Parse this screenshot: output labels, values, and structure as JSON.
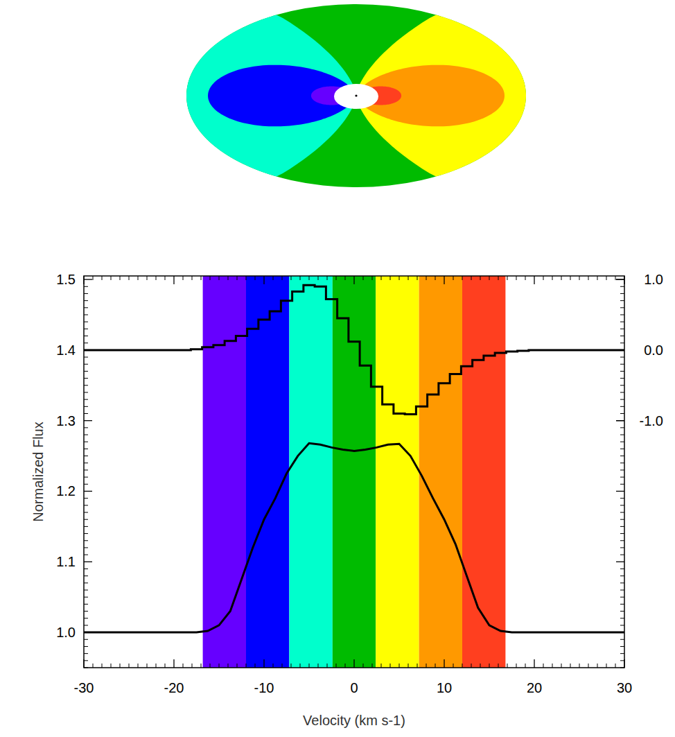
{
  "chart_data": {
    "type": "line",
    "x_label": "Velocity (km s-1)",
    "y_label": "Normalized Flux",
    "x": [
      -30,
      -28.75,
      -27.5,
      -26.25,
      -25,
      -23.75,
      -22.5,
      -21.25,
      -20,
      -18.75,
      -17.5,
      -16.25,
      -15,
      -13.75,
      -12.5,
      -11.25,
      -10,
      -8.75,
      -7.5,
      -6.25,
      -5,
      -3.75,
      -2.5,
      -1.25,
      0,
      1.25,
      2.5,
      3.75,
      5,
      6.25,
      7.5,
      8.75,
      10,
      11.25,
      12.5,
      13.75,
      15,
      16.25,
      17.5,
      18.75,
      20,
      21.25,
      22.5,
      23.75,
      25,
      26.25,
      27.5,
      28.75,
      30
    ],
    "series": [
      {
        "color": "#000000",
        "values": [
          1,
          1,
          1,
          1,
          1,
          1,
          1,
          1,
          1,
          1,
          1,
          1.002,
          1.01,
          1.03,
          1.075,
          1.12,
          1.16,
          1.19,
          1.225,
          1.25,
          1.268,
          1.266,
          1.262,
          1.259,
          1.257,
          1.259,
          1.262,
          1.266,
          1.267,
          1.25,
          1.222,
          1.19,
          1.16,
          1.125,
          1.08,
          1.035,
          1.01,
          1.002,
          1,
          1,
          1,
          1,
          1,
          1,
          1,
          1,
          1,
          1,
          1
        ]
      },
      {
        "color": "#000000",
        "axis": "y2",
        "line_style": "steps",
        "values": [
          0,
          0,
          0,
          0,
          0,
          0,
          0,
          0,
          0,
          0,
          0.01,
          0.04,
          0.07,
          0.13,
          0.2,
          0.3,
          0.43,
          0.55,
          0.7,
          0.83,
          0.92,
          0.9,
          0.72,
          0.45,
          0.12,
          -0.22,
          -0.52,
          -0.77,
          -0.9,
          -0.91,
          -0.8,
          -0.63,
          -0.47,
          -0.34,
          -0.23,
          -0.14,
          -0.08,
          -0.04,
          -0.02,
          -0.01,
          0,
          0,
          0,
          0,
          0,
          0,
          0,
          0,
          0
        ]
      }
    ],
    "bands": {
      "edges": [
        -16.8,
        -12,
        -7.2,
        -2.4,
        2.4,
        7.2,
        12,
        16.8
      ],
      "colors": [
        "#6600ff",
        "#0000ff",
        "#00ffcc",
        "#00bb00",
        "#ffff00",
        "#ff9900",
        "#ff3f1f"
      ]
    },
    "xlim": [
      -30,
      30
    ],
    "xticks": [
      -30,
      -20,
      -10,
      0,
      10,
      20,
      30
    ],
    "ylim": [
      0.95,
      1.505
    ],
    "yticks": [
      {
        "value": 1,
        "label": "1.0"
      },
      1.1,
      1.2,
      1.3,
      1.4,
      1.5
    ],
    "y2lim": [
      -4.5,
      1.05
    ],
    "y2ticks": [
      {
        "value": -1,
        "label": "-1.0"
      },
      {
        "value": 0,
        "label": "0.0"
      },
      {
        "value": 1,
        "label": "1.0"
      }
    ]
  }
}
